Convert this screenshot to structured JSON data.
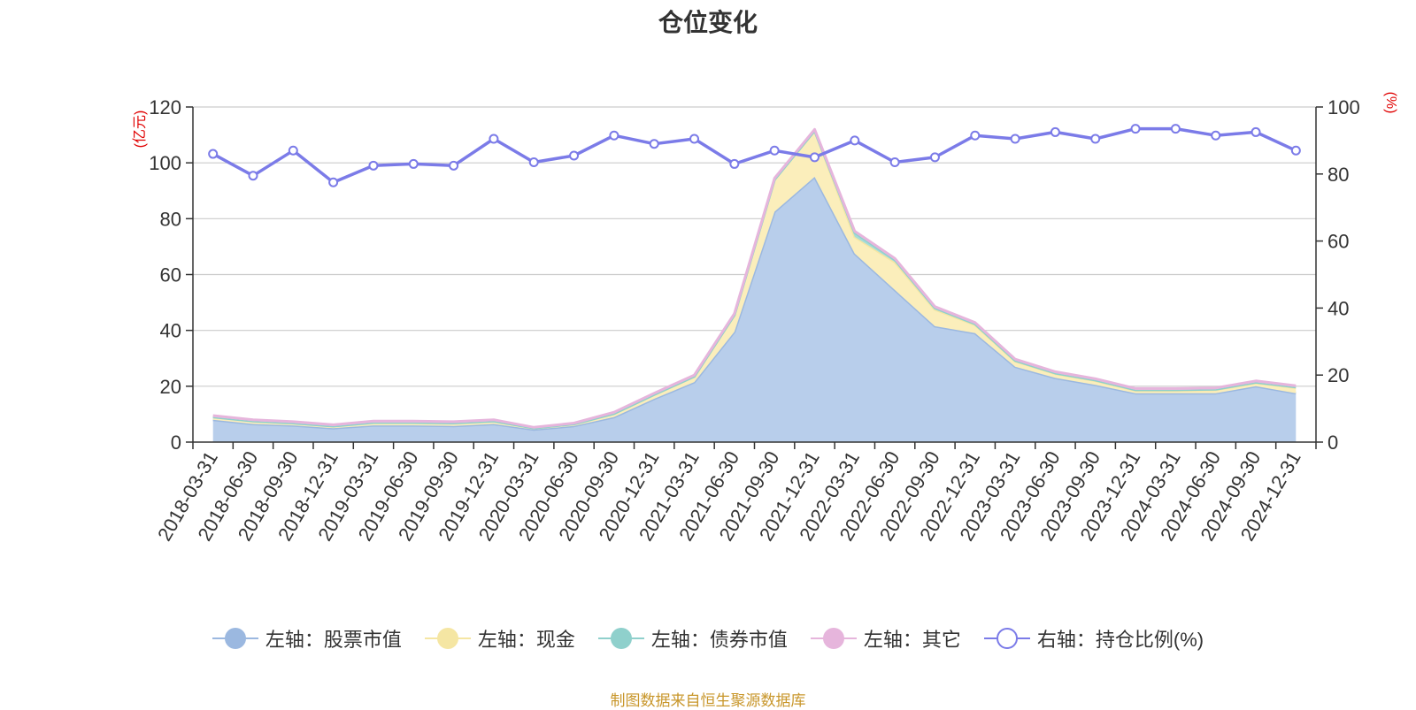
{
  "chart_data": {
    "type": "area",
    "title": "仓位变化",
    "x": [
      "2018-03-31",
      "2018-06-30",
      "2018-09-30",
      "2018-12-31",
      "2019-03-31",
      "2019-06-30",
      "2019-09-30",
      "2019-12-31",
      "2020-03-31",
      "2020-06-30",
      "2020-09-30",
      "2020-12-31",
      "2021-03-31",
      "2021-06-30",
      "2021-09-30",
      "2021-12-31",
      "2022-03-31",
      "2022-06-30",
      "2022-09-30",
      "2022-12-31",
      "2023-03-31",
      "2023-06-30",
      "2023-09-30",
      "2023-12-31",
      "2024-03-31",
      "2024-06-30",
      "2024-09-30",
      "2024-12-31"
    ],
    "left_axis": {
      "unit": "(亿元)",
      "ylim": [
        0,
        120
      ],
      "ticks": [
        "0",
        "20",
        "40",
        "60",
        "80",
        "100",
        "120"
      ]
    },
    "right_axis": {
      "unit": "(%)",
      "ylim": [
        0,
        100
      ],
      "ticks": [
        "0",
        "20",
        "40",
        "60",
        "80",
        "100"
      ]
    },
    "grid": true,
    "legend_position": "bottom",
    "series": [
      {
        "name": "左轴：股票市值",
        "axis": "left",
        "stacked": true,
        "color": "#9bb8e0",
        "fill": "#b8ceeb",
        "values": [
          8,
          6.5,
          6,
          5,
          6,
          6,
          5.8,
          6.5,
          4.5,
          5.8,
          9,
          15.5,
          21.5,
          39.5,
          82.5,
          95,
          67.5,
          54.5,
          41.5,
          39,
          27,
          23,
          20.5,
          17.5,
          17.5,
          17.5,
          20,
          17.5
        ]
      },
      {
        "name": "左轴：现金",
        "axis": "left",
        "stacked": true,
        "color": "#f5e6a3",
        "fill": "#fbeebb",
        "values": [
          1,
          1,
          0.8,
          0.7,
          1,
          1,
          1,
          1,
          0.5,
          0.7,
          1.2,
          1.5,
          2,
          6,
          11.5,
          16.5,
          6,
          10,
          6,
          3,
          2,
          1.5,
          1.5,
          1,
          1,
          1.2,
          1.2,
          2
        ]
      },
      {
        "name": "左轴：债券市值",
        "axis": "left",
        "stacked": true,
        "color": "#8fd0cc",
        "fill": "#a7dcd8",
        "values": [
          0,
          0,
          0,
          0,
          0,
          0,
          0,
          0,
          0,
          0,
          0,
          0,
          0,
          0,
          0,
          0,
          1.5,
          0.8,
          0.5,
          0.3,
          0.2,
          0.2,
          0.2,
          0.2,
          0.2,
          0.2,
          0.2,
          0.2
        ]
      },
      {
        "name": "左轴：其它",
        "axis": "left",
        "stacked": true,
        "color": "#e6b5dc",
        "fill": "#ecc6e4",
        "values": [
          0.5,
          0.5,
          0.5,
          0.5,
          0.5,
          0.5,
          0.5,
          0.5,
          0.3,
          0.3,
          0.5,
          0.5,
          0.5,
          0.5,
          0.5,
          0.5,
          0.5,
          0.5,
          0.5,
          0.5,
          0.5,
          0.5,
          0.5,
          0.5,
          0.5,
          0.5,
          0.5,
          0.5
        ]
      },
      {
        "name": "右轴：持仓比例(%)",
        "axis": "right",
        "type": "line",
        "color": "#7b7be8",
        "values": [
          86,
          79.5,
          87,
          77.5,
          82.5,
          83,
          82.5,
          90.5,
          83.5,
          85.5,
          91.5,
          89,
          90.5,
          83,
          87,
          85,
          90,
          83.5,
          85,
          91.5,
          90.5,
          92.5,
          90.5,
          93.5,
          93.5,
          91.5,
          92.5,
          87
        ]
      }
    ]
  },
  "source_note": "制图数据来自恒生聚源数据库"
}
